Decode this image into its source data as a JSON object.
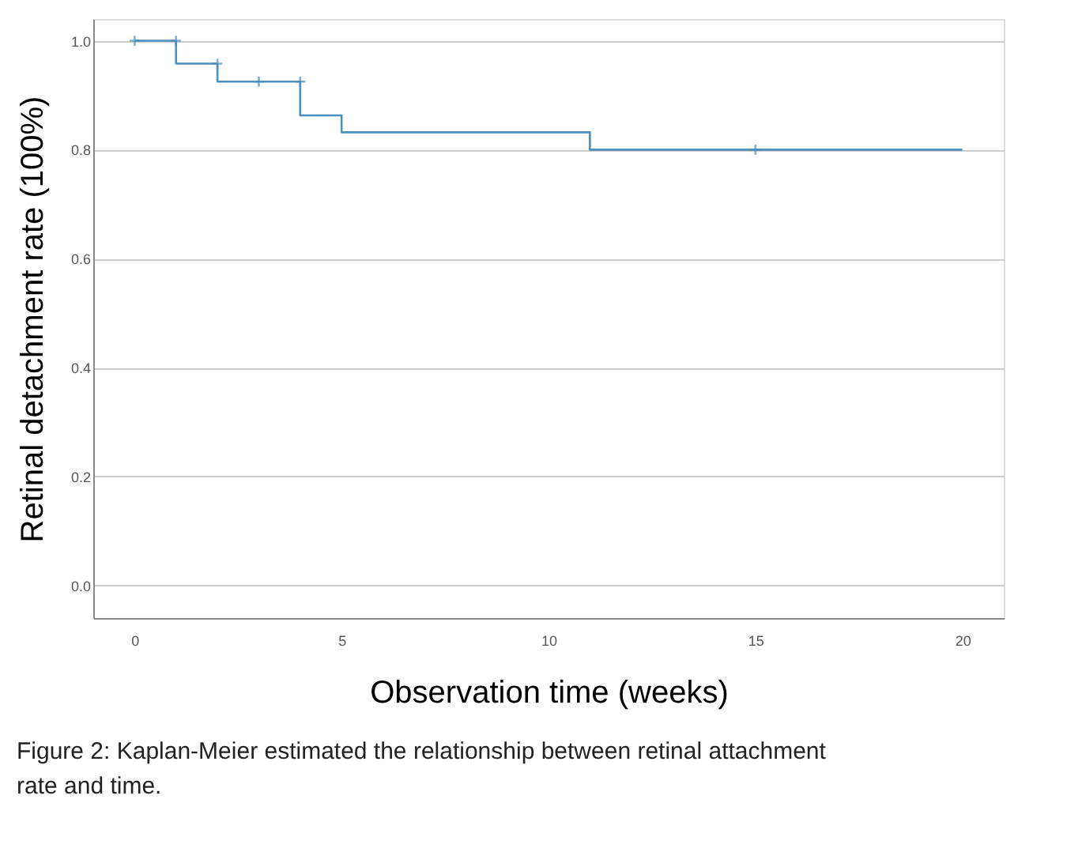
{
  "chart_data": {
    "type": "step",
    "xlabel": "Observation time (weeks)",
    "ylabel": "Retinal detachment rate (100%)",
    "series": [
      {
        "color": "#4a90c0",
        "x": [
          0,
          1,
          2,
          4,
          5,
          11,
          20
        ],
        "values": [
          1.0,
          0.958,
          0.925,
          0.863,
          0.832,
          0.8,
          0.8
        ]
      },
      {
        "type": "scatter",
        "color": "#4a90c0",
        "marker": "cross",
        "x": [
          0,
          1,
          2,
          3,
          4,
          15
        ],
        "values": [
          1.0,
          1.0,
          0.958,
          0.925,
          0.925,
          0.8
        ]
      }
    ],
    "xlim": [
      -1,
      21
    ],
    "xticks": [
      0,
      5,
      10,
      15,
      20
    ],
    "ylim": [
      -0.06,
      1.04
    ],
    "yticks": [
      {
        "value": 0,
        "label": "0.0"
      },
      0.2,
      0.4,
      0.6,
      0.8,
      {
        "value": 1,
        "label": "1.0"
      }
    ],
    "grid": "y",
    "annotations": [
      "Figure 2: Kaplan-Meier estimated the relationship between retinal attachment rate and time."
    ]
  }
}
